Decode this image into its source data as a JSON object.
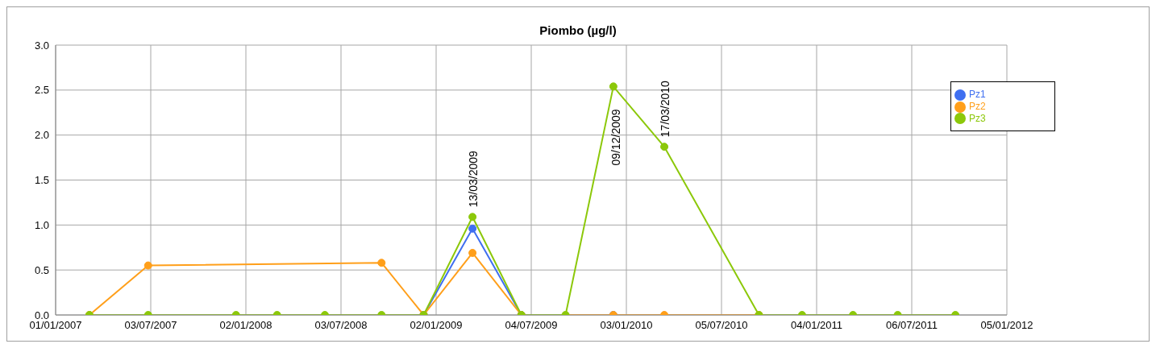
{
  "chart_data": {
    "type": "line",
    "title": "Piombo (µg/l)",
    "series": [
      {
        "name": "Pz1",
        "color": "#3f6ff0",
        "x": [
          "2008-12-09",
          "2009-03-13",
          "2009-06-15",
          "2009-12-09"
        ],
        "values": [
          0,
          0.96,
          0,
          0
        ]
      },
      {
        "name": "Pz2",
        "color": "#ff9f1a",
        "x": [
          "2007-03-07",
          "2007-06-28",
          "2008-09-19",
          "2008-12-09",
          "2009-03-13",
          "2009-06-15",
          "2009-12-09",
          "2010-03-17",
          "2010-09-15"
        ],
        "values": [
          0,
          0.55,
          0.58,
          0,
          0.69,
          0,
          0,
          0,
          0
        ]
      },
      {
        "name": "Pz3",
        "color": "#8cc80a",
        "x": [
          "2007-03-07",
          "2007-06-28",
          "2007-12-14",
          "2008-03-02",
          "2008-06-02",
          "2008-09-19",
          "2008-12-09",
          "2009-03-13",
          "2009-06-15",
          "2009-09-08",
          "2009-12-09",
          "2010-03-17",
          "2010-09-15",
          "2010-12-07",
          "2011-03-15",
          "2011-06-09",
          "2011-09-28"
        ],
        "values": [
          0,
          0,
          0,
          0,
          0,
          0,
          0,
          1.09,
          0,
          0,
          2.54,
          1.87,
          0,
          0,
          0,
          0,
          0
        ]
      }
    ],
    "xlim": [
      "2007-01-01",
      "2012-01-05"
    ],
    "xticks": [
      {
        "value": "2007-01-01",
        "label": "01/01/2007"
      },
      {
        "value": "2007-07-03",
        "label": "03/07/2007"
      },
      {
        "value": "2008-01-02",
        "label": "02/01/2008"
      },
      {
        "value": "2008-07-03",
        "label": "03/07/2008"
      },
      {
        "value": "2009-01-02",
        "label": "02/01/2009"
      },
      {
        "value": "2009-07-04",
        "label": "04/07/2009"
      },
      {
        "value": "2010-01-03",
        "label": "03/01/2010"
      },
      {
        "value": "2010-07-05",
        "label": "05/07/2010"
      },
      {
        "value": "2011-01-04",
        "label": "04/01/2011"
      },
      {
        "value": "2011-07-06",
        "label": "06/07/2011"
      },
      {
        "value": "2012-01-05",
        "label": "05/01/2012"
      }
    ],
    "ylim": [
      0,
      3
    ],
    "yticks": [
      {
        "value": 0,
        "label": "0.0"
      },
      {
        "value": 0.5,
        "label": "0.5"
      },
      {
        "value": 1,
        "label": "1.0"
      },
      {
        "value": 1.5,
        "label": "1.5"
      },
      {
        "value": 2,
        "label": "2.0"
      },
      {
        "value": 2.5,
        "label": "2.5"
      },
      {
        "value": 3,
        "label": "3.0"
      }
    ],
    "annotations": [
      {
        "text": "13/03/2009",
        "x": "2009-03-13",
        "y": 1.09
      },
      {
        "text": "09/12/2009",
        "x": "2009-12-09",
        "y": 2.54
      },
      {
        "text": "17/03/2010",
        "x": "2010-03-17",
        "y": 1.87
      }
    ],
    "grid": true,
    "legend": "top right",
    "marker": "circle",
    "line_style": "solid"
  }
}
